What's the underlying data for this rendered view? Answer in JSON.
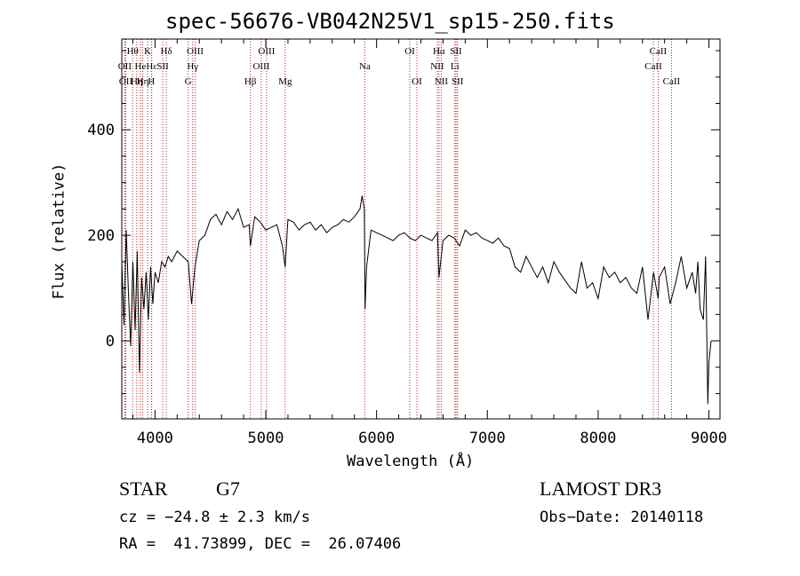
{
  "chart_data": {
    "type": "line",
    "title": "spec-56676-VB042N25V1_sp15-250.fits",
    "xlabel": "Wavelength (Å)",
    "ylabel": "Flux (relative)",
    "xlim": [
      3700,
      9100
    ],
    "ylim": [
      -148,
      572
    ],
    "xticks": [
      4000,
      5000,
      6000,
      7000,
      8000,
      9000
    ],
    "xtick_labels": [
      "4000",
      "5000",
      "6000",
      "7000",
      "8000",
      "9000"
    ],
    "yticks": [
      0,
      200,
      400
    ],
    "ytick_labels": [
      "0",
      "200",
      "400"
    ],
    "grid": false,
    "series": [
      {
        "x": [
          3700,
          3720,
          3740,
          3760,
          3780,
          3800,
          3820,
          3840,
          3860,
          3880,
          3900,
          3920,
          3940,
          3960,
          3980,
          4000,
          4030,
          4060,
          4090,
          4120,
          4150,
          4200,
          4250,
          4300,
          4330,
          4360,
          4400,
          4450,
          4500,
          4550,
          4600,
          4650,
          4700,
          4750,
          4800,
          4850,
          4861,
          4900,
          4950,
          5000,
          5050,
          5100,
          5150,
          5175,
          5200,
          5250,
          5300,
          5350,
          5400,
          5450,
          5500,
          5550,
          5600,
          5650,
          5700,
          5750,
          5800,
          5850,
          5870,
          5890,
          5896,
          5910,
          5950,
          6000,
          6050,
          6100,
          6150,
          6200,
          6250,
          6300,
          6350,
          6400,
          6450,
          6500,
          6550,
          6563,
          6600,
          6650,
          6700,
          6750,
          6800,
          6850,
          6900,
          6950,
          7000,
          7050,
          7100,
          7150,
          7200,
          7250,
          7300,
          7350,
          7400,
          7450,
          7500,
          7550,
          7600,
          7650,
          7700,
          7750,
          7800,
          7850,
          7900,
          7950,
          8000,
          8050,
          8100,
          8150,
          8200,
          8250,
          8300,
          8350,
          8400,
          8450,
          8500,
          8542,
          8550,
          8600,
          8650,
          8700,
          8750,
          8800,
          8850,
          8880,
          8900,
          8920,
          8950,
          8970,
          8990,
          9000,
          9020
        ],
        "y": [
          150,
          30,
          210,
          90,
          -10,
          150,
          20,
          170,
          -60,
          120,
          60,
          130,
          40,
          140,
          70,
          130,
          110,
          150,
          140,
          160,
          150,
          170,
          160,
          150,
          70,
          140,
          190,
          200,
          230,
          240,
          220,
          245,
          230,
          250,
          215,
          220,
          180,
          235,
          225,
          210,
          215,
          220,
          180,
          140,
          230,
          225,
          210,
          220,
          225,
          210,
          220,
          205,
          215,
          220,
          230,
          225,
          235,
          250,
          275,
          250,
          60,
          140,
          210,
          205,
          200,
          195,
          190,
          200,
          205,
          195,
          190,
          200,
          195,
          190,
          205,
          120,
          190,
          200,
          195,
          180,
          210,
          200,
          205,
          195,
          190,
          185,
          195,
          180,
          175,
          140,
          130,
          160,
          140,
          120,
          140,
          110,
          150,
          130,
          115,
          100,
          90,
          150,
          100,
          110,
          80,
          140,
          120,
          130,
          110,
          120,
          100,
          90,
          140,
          40,
          130,
          80,
          120,
          140,
          70,
          110,
          160,
          100,
          130,
          90,
          150,
          60,
          40,
          160,
          -120,
          -40,
          0
        ]
      }
    ],
    "annotations": [
      {
        "wavelength": 3727,
        "row": 1,
        "label": "OII"
      },
      {
        "wavelength": 3736,
        "row": 2,
        "label": "OII"
      },
      {
        "wavelength": 3798,
        "row": 0,
        "label": "Hθ"
      },
      {
        "wavelength": 3835,
        "row": 2,
        "label": "Hη"
      },
      {
        "wavelength": 3868,
        "row": 1,
        "label": "He"
      },
      {
        "wavelength": 3889,
        "row": 2,
        "label": "Hη"
      },
      {
        "wavelength": 3934,
        "row": 0,
        "label": "K"
      },
      {
        "wavelength": 3968,
        "row": 2,
        "label": "H"
      },
      {
        "wavelength": 3970,
        "row": 1,
        "label": "Hε"
      },
      {
        "wavelength": 4070,
        "row": 1,
        "label": "SII"
      },
      {
        "wavelength": 4102,
        "row": 0,
        "label": "Hδ"
      },
      {
        "wavelength": 4300,
        "row": 2,
        "label": "G"
      },
      {
        "wavelength": 4340,
        "row": 1,
        "label": "Hγ"
      },
      {
        "wavelength": 4363,
        "row": 0,
        "label": "OIII"
      },
      {
        "wavelength": 4861,
        "row": 2,
        "label": "Hβ"
      },
      {
        "wavelength": 4959,
        "row": 1,
        "label": "OIII"
      },
      {
        "wavelength": 5007,
        "row": 0,
        "label": "OIII"
      },
      {
        "wavelength": 5175,
        "row": 2,
        "label": "Mg"
      },
      {
        "wavelength": 5894,
        "row": 1,
        "label": "Na"
      },
      {
        "wavelength": 6300,
        "row": 0,
        "label": "OI"
      },
      {
        "wavelength": 6364,
        "row": 2,
        "label": "OI"
      },
      {
        "wavelength": 6548,
        "row": 1,
        "label": "NII"
      },
      {
        "wavelength": 6563,
        "row": 0,
        "label": "Hα"
      },
      {
        "wavelength": 6584,
        "row": 2,
        "label": "NII"
      },
      {
        "wavelength": 6707,
        "row": 1,
        "label": "Li"
      },
      {
        "wavelength": 6717,
        "row": 0,
        "label": "SII"
      },
      {
        "wavelength": 6731,
        "row": 2,
        "label": "SII"
      },
      {
        "wavelength": 8498,
        "row": 1,
        "label": "CaII"
      },
      {
        "wavelength": 8542,
        "row": 0,
        "label": "CaII"
      },
      {
        "wavelength": 8662,
        "row": 2,
        "label": "CaII"
      }
    ],
    "colors": {
      "spectrum": "#000000",
      "line_marker": "#b22222",
      "axes": "#000000"
    }
  },
  "footer": {
    "object_class": "STAR",
    "subclass": "G7",
    "survey": "LAMOST DR3",
    "redshift": "cz = −24.8 ± 2.3 km/s",
    "obs_date": "Obs−Date: 20140118",
    "coords": "RA =  41.73899, DEC =  26.07406"
  }
}
